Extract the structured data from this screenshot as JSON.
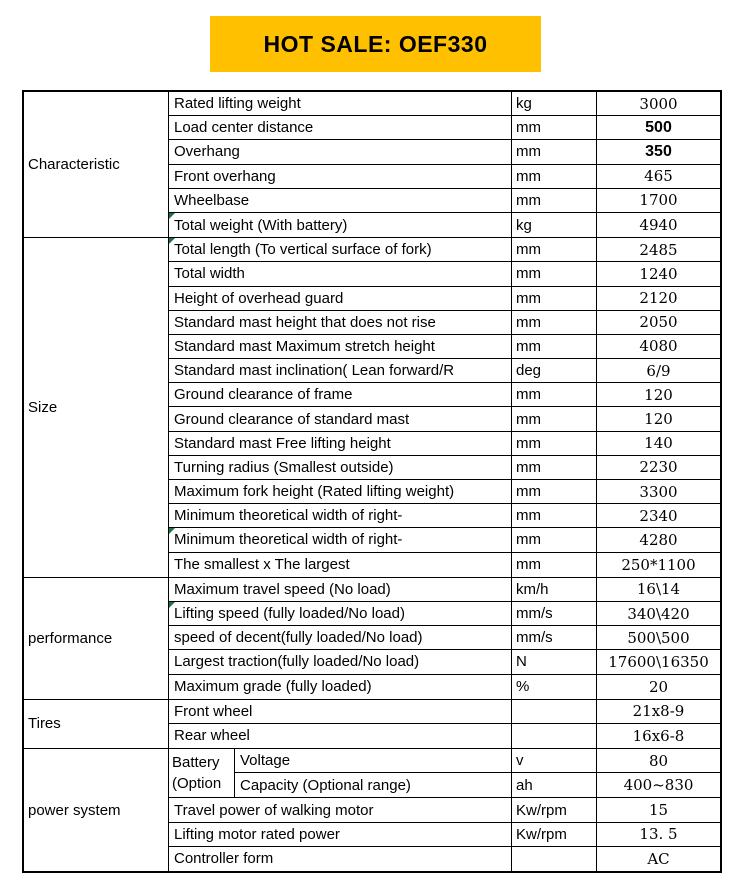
{
  "banner": {
    "text": "HOT SALE: OEF330",
    "bg_color": "#FFC000",
    "text_color": "#000000"
  },
  "table": {
    "flag_color": "#1E7145",
    "sections": [
      {
        "label": "Characteristic",
        "rows": [
          {
            "param": "Rated lifting weight",
            "unit": "kg",
            "value": "3000"
          },
          {
            "param": "Load center distance",
            "unit": "mm",
            "value": "500"
          },
          {
            "param": "Overhang",
            "unit": "mm",
            "value": "350"
          },
          {
            "param": "Front overhang",
            "unit": "mm",
            "value": "465"
          },
          {
            "param": "Wheelbase",
            "unit": "mm",
            "value": "1700"
          },
          {
            "param": "Total weight (With battery)",
            "unit": "kg",
            "value": "4940"
          }
        ]
      },
      {
        "label": "Size",
        "rows": [
          {
            "param": "Total length (To vertical surface of fork)",
            "unit": "mm",
            "value": "2485"
          },
          {
            "param": "Total width",
            "unit": "mm",
            "value": "1240"
          },
          {
            "param": "Height of overhead guard",
            "unit": "mm",
            "value": "2120"
          },
          {
            "param": "Standard mast height that does not rise",
            "unit": "mm",
            "value": "2050"
          },
          {
            "param": "Standard mast Maximum stretch height",
            "unit": "mm",
            "value": "4080"
          },
          {
            "param": "Standard mast inclination( Lean forward/R",
            "unit": "deg",
            "value": "6/9"
          },
          {
            "param": "Ground clearance of frame",
            "unit": "mm",
            "value": "120"
          },
          {
            "param": "Ground clearance of standard mast",
            "unit": "mm",
            "value": "120"
          },
          {
            "param": "Standard mast Free lifting height",
            "unit": "mm",
            "value": "140"
          },
          {
            "param": "Turning radius (Smallest outside)",
            "unit": "mm",
            "value": "2230"
          },
          {
            "param": "Maximum fork height (Rated lifting weight)",
            "unit": "mm",
            "value": "3300"
          },
          {
            "param": "Minimum theoretical width of right-",
            "unit": "mm",
            "value": "2340"
          },
          {
            "param": "Minimum theoretical width of right-",
            "unit": "mm",
            "value": "4280"
          },
          {
            "param": "The smallest x The largest",
            "unit": "mm",
            "value": "250*1100"
          }
        ]
      },
      {
        "label": "performance",
        "rows": [
          {
            "param": "Maximum travel speed (No load)",
            "unit": "km/h",
            "value": "16\\14"
          },
          {
            "param": "Lifting speed (fully loaded/No load)",
            "unit": "mm/s",
            "value": "340\\420"
          },
          {
            "param": "speed of decent(fully loaded/No load)",
            "unit": "mm/s",
            "value": "500\\500"
          },
          {
            "param": "Largest traction(fully loaded/No load)",
            "unit": "N",
            "value": "17600\\16350"
          },
          {
            "param": "Maximum grade (fully loaded)",
            "unit": "%",
            "value": "20"
          }
        ]
      },
      {
        "label": "Tires",
        "rows": [
          {
            "param": "Front wheel",
            "unit": "",
            "value": "21x8-9"
          },
          {
            "param": "Rear wheel",
            "unit": "",
            "value": "16x6-8"
          }
        ]
      },
      {
        "label": "power system",
        "battery_label": "Battery (Option",
        "rows": [
          {
            "param": "Voltage",
            "unit": "v",
            "value": "80"
          },
          {
            "param": "Capacity (Optional range)",
            "unit": "ah",
            "value": "400~830"
          },
          {
            "param": "Travel power of walking motor",
            "unit": "Kw/rpm",
            "value": "15"
          },
          {
            "param": "Lifting motor rated power",
            "unit": "Kw/rpm",
            "value": "13. 5"
          },
          {
            "param": "Controller form",
            "unit": "",
            "value": "AC"
          }
        ]
      }
    ]
  }
}
